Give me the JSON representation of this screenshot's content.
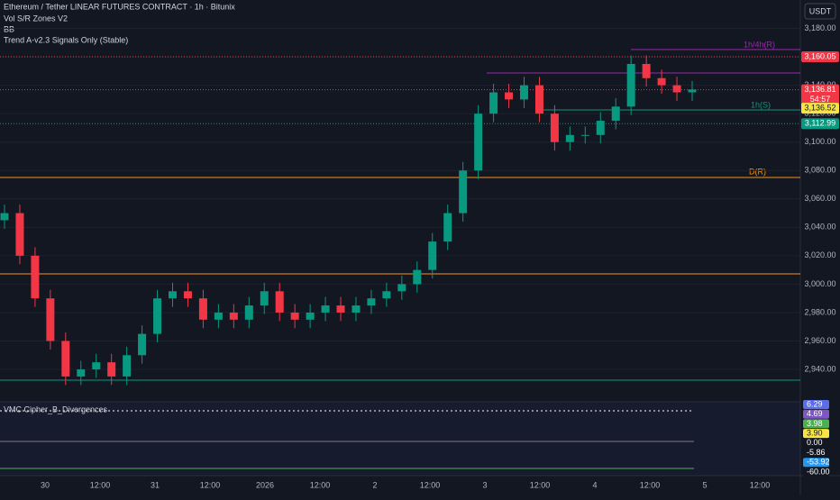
{
  "header": {
    "symbol": "Ethereum / Tether LINEAR FUTURES CONTRACT · 1h · Bitunix",
    "indicators": [
      "Vol S/R Zones V2",
      "BB",
      "Trend A-v2.3 Signals Only (Stable)"
    ],
    "currency": "USDT"
  },
  "zone_labels": [
    "1h/4h(R)",
    "1h(S)",
    "D(R)"
  ],
  "chart_data": {
    "type": "candlestick",
    "open": [
      3045,
      3050,
      3020,
      2990,
      2960,
      2935,
      2940,
      2945,
      2935,
      2950,
      2965,
      2990,
      2995,
      2990,
      2975,
      2980,
      2975,
      2985,
      2995,
      2980,
      2975,
      2980,
      2985,
      2980,
      2985,
      2990,
      2995,
      3000,
      3010,
      3030,
      3050,
      3080,
      3120,
      3135,
      3130,
      3140,
      3120,
      3100,
      3105,
      3105,
      3115,
      3125,
      3155,
      3145,
      3140,
      3135
    ],
    "high": [
      3056,
      3056,
      3026,
      2996,
      2966,
      2946,
      2951,
      2951,
      2956,
      2971,
      2996,
      3001,
      3001,
      2996,
      2986,
      2986,
      2991,
      3001,
      3001,
      2986,
      2986,
      2991,
      2991,
      2991,
      2996,
      3001,
      3006,
      3016,
      3036,
      3056,
      3086,
      3126,
      3141,
      3141,
      3146,
      3146,
      3126,
      3111,
      3111,
      3121,
      3131,
      3161,
      3161,
      3151,
      3146,
      3143
    ],
    "low": [
      3039,
      3014,
      2984,
      2954,
      2929,
      2929,
      2934,
      2929,
      2929,
      2944,
      2959,
      2984,
      2984,
      2969,
      2969,
      2969,
      2969,
      2979,
      2974,
      2969,
      2969,
      2974,
      2974,
      2974,
      2979,
      2984,
      2989,
      2994,
      3004,
      3024,
      3044,
      3074,
      3114,
      3124,
      3124,
      3114,
      3094,
      3094,
      3099,
      3099,
      3109,
      3119,
      3139,
      3134,
      3129,
      3129
    ],
    "close": [
      3050,
      3020,
      2990,
      2960,
      2935,
      2940,
      2945,
      2935,
      2950,
      2965,
      2990,
      2995,
      2990,
      2975,
      2980,
      2975,
      2985,
      2995,
      2980,
      2975,
      2980,
      2985,
      2980,
      2985,
      2990,
      2995,
      3000,
      3010,
      3030,
      3050,
      3080,
      3120,
      3135,
      3130,
      3140,
      3120,
      3100,
      3105,
      3105,
      3115,
      3125,
      3155,
      3145,
      3140,
      3135,
      3137
    ],
    "up_color": "#089981",
    "down_color": "#f23645",
    "ylim": [
      2921,
      3200
    ],
    "yticks": [
      {
        "value": 3180,
        "label": "3,180.00"
      },
      {
        "value": 3160,
        "label": "3,160.00"
      },
      {
        "value": 3140,
        "label": "3,140.00"
      },
      {
        "value": 3120,
        "label": "3,120.00"
      },
      {
        "value": 3100,
        "label": "3,100.00"
      },
      {
        "value": 3080,
        "label": "3,080.00"
      },
      {
        "value": 3060,
        "label": "3,060.00"
      },
      {
        "value": 3040,
        "label": "3,040.00"
      },
      {
        "value": 3020,
        "label": "3,020.00"
      },
      {
        "value": 3000,
        "label": "3,000.00"
      },
      {
        "value": 2980,
        "label": "2,980.00"
      },
      {
        "value": 2960,
        "label": "2,960.00"
      },
      {
        "value": 2940,
        "label": "2,940.00"
      }
    ],
    "xticks": [
      "30",
      "12:00",
      "31",
      "12:00",
      "2026",
      "12:00",
      "2",
      "12:00",
      "3",
      "12:00",
      "4",
      "12:00",
      "5",
      "12:00"
    ],
    "badges": [
      {
        "value": 3160.05,
        "label": "3,160.05",
        "color": "#f23645"
      },
      {
        "value": 3136.81,
        "label": "3,136.81",
        "color": "#f23645"
      },
      {
        "value": 3112.99,
        "label": "3,112.99",
        "color": "#089981"
      }
    ],
    "countdown": "54:57",
    "bb_badge": {
      "value": 3136.52,
      "label": "3,136.52",
      "color": "#f7e341"
    }
  },
  "oscillator": {
    "title": "VMC Cipher_B_Divergences",
    "labels": [
      "6.29",
      "4.69",
      "3.98",
      "3.90",
      "0.00",
      "-5.86",
      "-53.92",
      "-60.00"
    ],
    "colors": [
      "#5b6ee8",
      "#7e57c2",
      "#4caf50",
      "#f7e341",
      "#131722",
      "#131722",
      "#2196f3",
      "#131722"
    ]
  }
}
